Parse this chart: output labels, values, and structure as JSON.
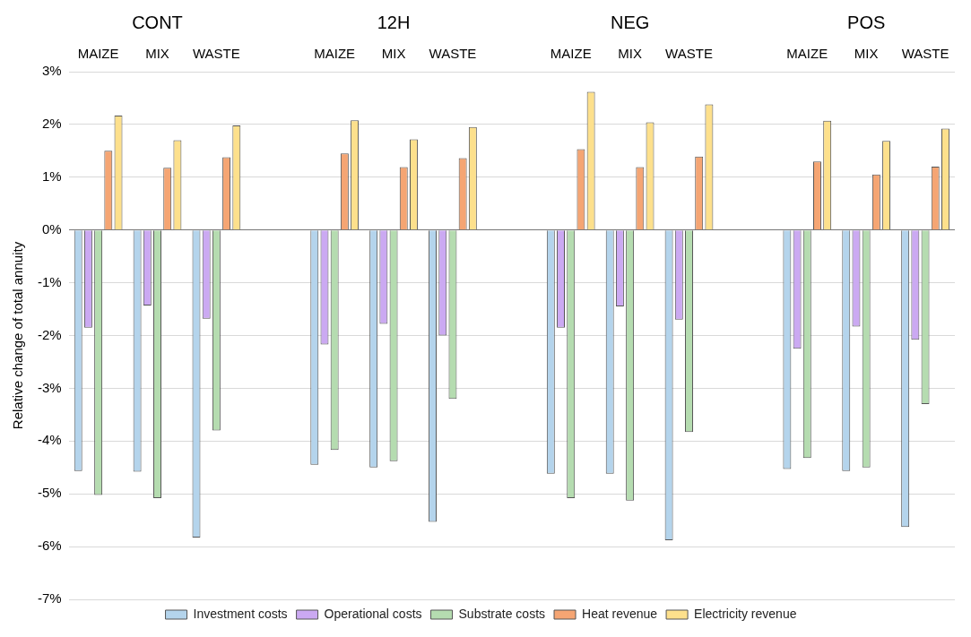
{
  "chart_data": {
    "type": "bar",
    "ylabel": "Relative change of total annuity",
    "categories": [
      "MAIZE",
      "MIX",
      "WASTE",
      null,
      "MAIZE",
      "MIX",
      "WASTE",
      null,
      "MAIZE",
      "MIX",
      "WASTE",
      null,
      "MAIZE",
      "MIX",
      "WASTE"
    ],
    "annotations": [
      "CONT",
      "12H",
      "NEG",
      "POS"
    ],
    "series": [
      {
        "name": "Investment costs",
        "color": "#b4d4ec",
        "values": [
          -4.57,
          -4.58,
          -5.83,
          null,
          -4.45,
          -4.5,
          -5.53,
          null,
          -4.62,
          -4.62,
          -5.88,
          null,
          -4.53,
          -4.57,
          -5.63
        ]
      },
      {
        "name": "Operational costs",
        "color": "#cba9f2",
        "values": [
          -1.85,
          -1.43,
          -1.68,
          null,
          -2.17,
          -1.78,
          -2.0,
          null,
          -1.85,
          -1.45,
          -1.7,
          null,
          -2.25,
          -1.83,
          -2.08
        ]
      },
      {
        "name": "Substrate costs",
        "color": "#b5dcb0",
        "values": [
          -5.02,
          -5.08,
          -3.8,
          null,
          -4.17,
          -4.38,
          -3.2,
          null,
          -5.08,
          -5.13,
          -3.83,
          null,
          -4.32,
          -4.5,
          -3.3
        ]
      },
      {
        "name": "Heat revenue",
        "color": "#f5a573",
        "values": [
          1.5,
          1.18,
          1.38,
          null,
          1.45,
          1.19,
          1.36,
          null,
          1.53,
          1.19,
          1.39,
          null,
          1.3,
          1.05,
          1.2
        ]
      },
      {
        "name": "Electricity revenue",
        "color": "#fde08c",
        "values": [
          2.17,
          1.7,
          1.98,
          null,
          2.08,
          1.72,
          1.95,
          null,
          2.62,
          2.04,
          2.38,
          null,
          2.07,
          1.69,
          1.92
        ]
      }
    ],
    "ylim": [
      -7,
      3
    ],
    "yticks": [
      {
        "value": 3,
        "label": "3%"
      },
      {
        "value": 2,
        "label": "2%"
      },
      {
        "value": 1,
        "label": "1%"
      },
      {
        "value": 0,
        "label": "0%"
      },
      {
        "value": -1,
        "label": "-1%"
      },
      {
        "value": -2,
        "label": "-2%"
      },
      {
        "value": -3,
        "label": "-3%"
      },
      {
        "value": -4,
        "label": "-4%"
      },
      {
        "value": -5,
        "label": "-5%"
      },
      {
        "value": -6,
        "label": "-6%"
      },
      {
        "value": -7,
        "label": "-7%"
      }
    ],
    "grid": "y",
    "legend": "bottom"
  }
}
